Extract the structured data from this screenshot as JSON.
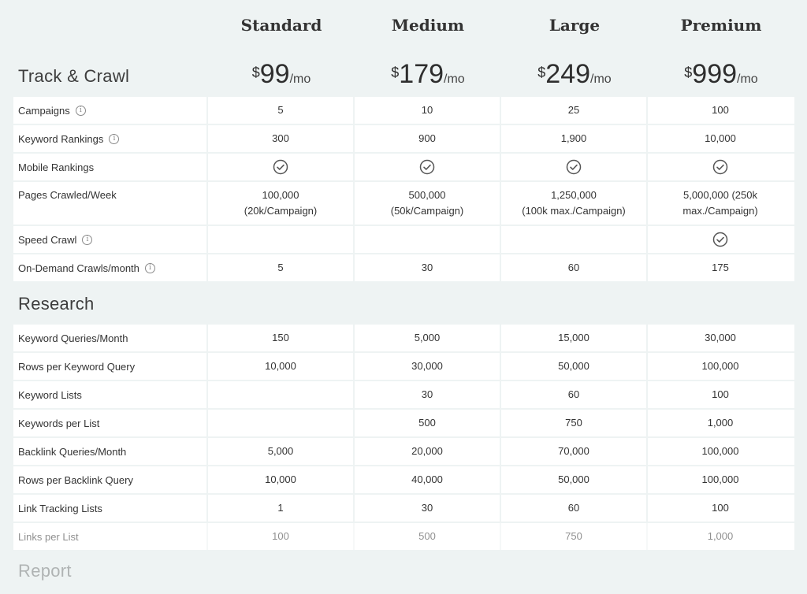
{
  "plans": [
    {
      "name": "Standard",
      "currency": "$",
      "price": "99",
      "per": "/mo"
    },
    {
      "name": "Medium",
      "currency": "$",
      "price": "179",
      "per": "/mo"
    },
    {
      "name": "Large",
      "currency": "$",
      "price": "249",
      "per": "/mo"
    },
    {
      "name": "Premium",
      "currency": "$",
      "price": "999",
      "per": "/mo"
    }
  ],
  "track": {
    "title": "Track & Crawl",
    "rows": [
      {
        "label": "Campaigns",
        "info": true,
        "values": [
          "5",
          "10",
          "25",
          "100"
        ]
      },
      {
        "label": "Keyword Rankings",
        "info": true,
        "values": [
          "300",
          "900",
          "1,900",
          "10,000"
        ]
      },
      {
        "label": "Mobile Rankings",
        "info": false,
        "values": [
          "check",
          "check",
          "check",
          "check"
        ]
      },
      {
        "label": "Pages Crawled/Week",
        "info": false,
        "values": [
          [
            "100,000",
            "(20k/Campaign)"
          ],
          [
            "500,000",
            "(50k/Campaign)"
          ],
          [
            "1,250,000",
            "(100k max./Campaign)"
          ],
          [
            "5,000,000 (250k",
            "max./Campaign)"
          ]
        ]
      },
      {
        "label": "Speed Crawl",
        "info": true,
        "values": [
          "",
          "",
          "",
          "check"
        ]
      },
      {
        "label": "On-Demand Crawls/month",
        "info": true,
        "values": [
          "5",
          "30",
          "60",
          "175"
        ]
      }
    ]
  },
  "research": {
    "title": "Research",
    "rows": [
      {
        "label": "Keyword Queries/Month",
        "values": [
          "150",
          "5,000",
          "15,000",
          "30,000"
        ]
      },
      {
        "label": "Rows per Keyword Query",
        "values": [
          "10,000",
          "30,000",
          "50,000",
          "100,000"
        ]
      },
      {
        "label": "Keyword Lists",
        "values": [
          "",
          "30",
          "60",
          "100"
        ]
      },
      {
        "label": "Keywords per List",
        "values": [
          "",
          "500",
          "750",
          "1,000"
        ]
      },
      {
        "label": "Backlink Queries/Month",
        "values": [
          "5,000",
          "20,000",
          "70,000",
          "100,000"
        ]
      },
      {
        "label": "Rows per Backlink Query",
        "values": [
          "10,000",
          "40,000",
          "50,000",
          "100,000"
        ]
      },
      {
        "label": "Link Tracking Lists",
        "values": [
          "1",
          "30",
          "60",
          "100"
        ]
      },
      {
        "label": "Links per List",
        "values": [
          "100",
          "500",
          "750",
          "1,000"
        ]
      }
    ]
  },
  "report": {
    "title": "Report"
  },
  "icons": {
    "info": "info-icon",
    "check": "check-circle-icon"
  }
}
